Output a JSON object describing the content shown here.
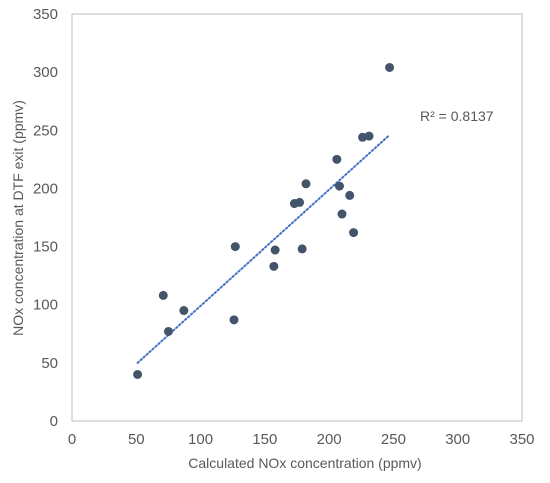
{
  "chart_data": {
    "type": "scatter",
    "xlabel": "Calculated NOx concentration (ppmv)",
    "ylabel": "NOx concentration at DTF exit (ppmv)",
    "xlim": [
      0,
      350
    ],
    "ylim": [
      0,
      350
    ],
    "xticks": [
      0,
      50,
      100,
      150,
      200,
      250,
      300,
      350
    ],
    "yticks": [
      0,
      50,
      100,
      150,
      200,
      250,
      300,
      350
    ],
    "grid": false,
    "points": [
      {
        "x": 51,
        "y": 40
      },
      {
        "x": 71,
        "y": 108
      },
      {
        "x": 75,
        "y": 77
      },
      {
        "x": 87,
        "y": 95
      },
      {
        "x": 126,
        "y": 87
      },
      {
        "x": 127,
        "y": 150
      },
      {
        "x": 157,
        "y": 133
      },
      {
        "x": 158,
        "y": 147
      },
      {
        "x": 173,
        "y": 187
      },
      {
        "x": 177,
        "y": 188
      },
      {
        "x": 179,
        "y": 148
      },
      {
        "x": 182,
        "y": 204
      },
      {
        "x": 206,
        "y": 225
      },
      {
        "x": 208,
        "y": 202
      },
      {
        "x": 210,
        "y": 178
      },
      {
        "x": 216,
        "y": 194
      },
      {
        "x": 219,
        "y": 162
      },
      {
        "x": 226,
        "y": 244
      },
      {
        "x": 231,
        "y": 245
      },
      {
        "x": 247,
        "y": 304
      }
    ],
    "trendline": {
      "style": "dotted",
      "x": [
        51,
        247
      ],
      "y": [
        50,
        246
      ]
    },
    "annotation": "R² = 0.8137",
    "colors": {
      "marker": "#44546a",
      "trendline": "#4472c4",
      "axis": "#bfbfbf",
      "text": "#595959"
    }
  }
}
